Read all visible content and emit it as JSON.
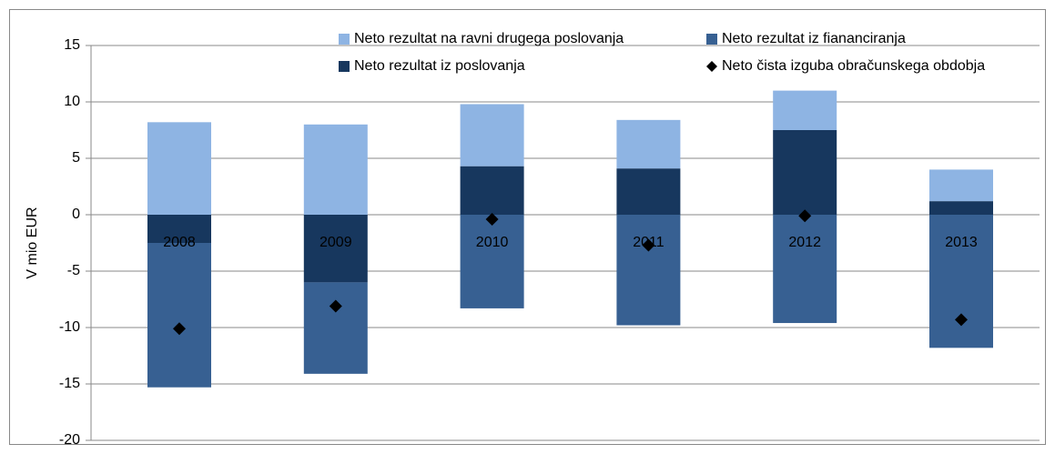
{
  "chart_data": {
    "type": "bar",
    "stacked": true,
    "y_label": "V mio EUR",
    "categories": [
      "2008",
      "2009",
      "2010",
      "2011",
      "2012",
      "2013"
    ],
    "series": [
      {
        "name": "Neto rezultat iz poslovanja",
        "color": "#17375e",
        "values": [
          -2.5,
          -6.0,
          4.3,
          4.1,
          7.5,
          1.2
        ]
      },
      {
        "name": "Neto rezultat iz fiananciranja",
        "color": "#376092",
        "values": [
          -12.8,
          -8.1,
          -8.3,
          -9.8,
          -9.6,
          -11.8
        ]
      },
      {
        "name": "Neto rezultat na ravni drugega poslovanja",
        "color": "#8eb4e3",
        "values": [
          8.2,
          8.0,
          5.5,
          4.3,
          3.5,
          2.8
        ]
      },
      {
        "name": "Neto čista izguba obračunskega obdobja",
        "type": "scatter",
        "color": "#000000",
        "values": [
          -10.1,
          -8.1,
          -0.4,
          -2.7,
          -0.1,
          -9.3
        ]
      }
    ],
    "ylim": [
      -20,
      15
    ],
    "yticks": [
      -20,
      -15,
      -10,
      -5,
      0,
      5,
      10,
      15
    ],
    "grid": true
  }
}
